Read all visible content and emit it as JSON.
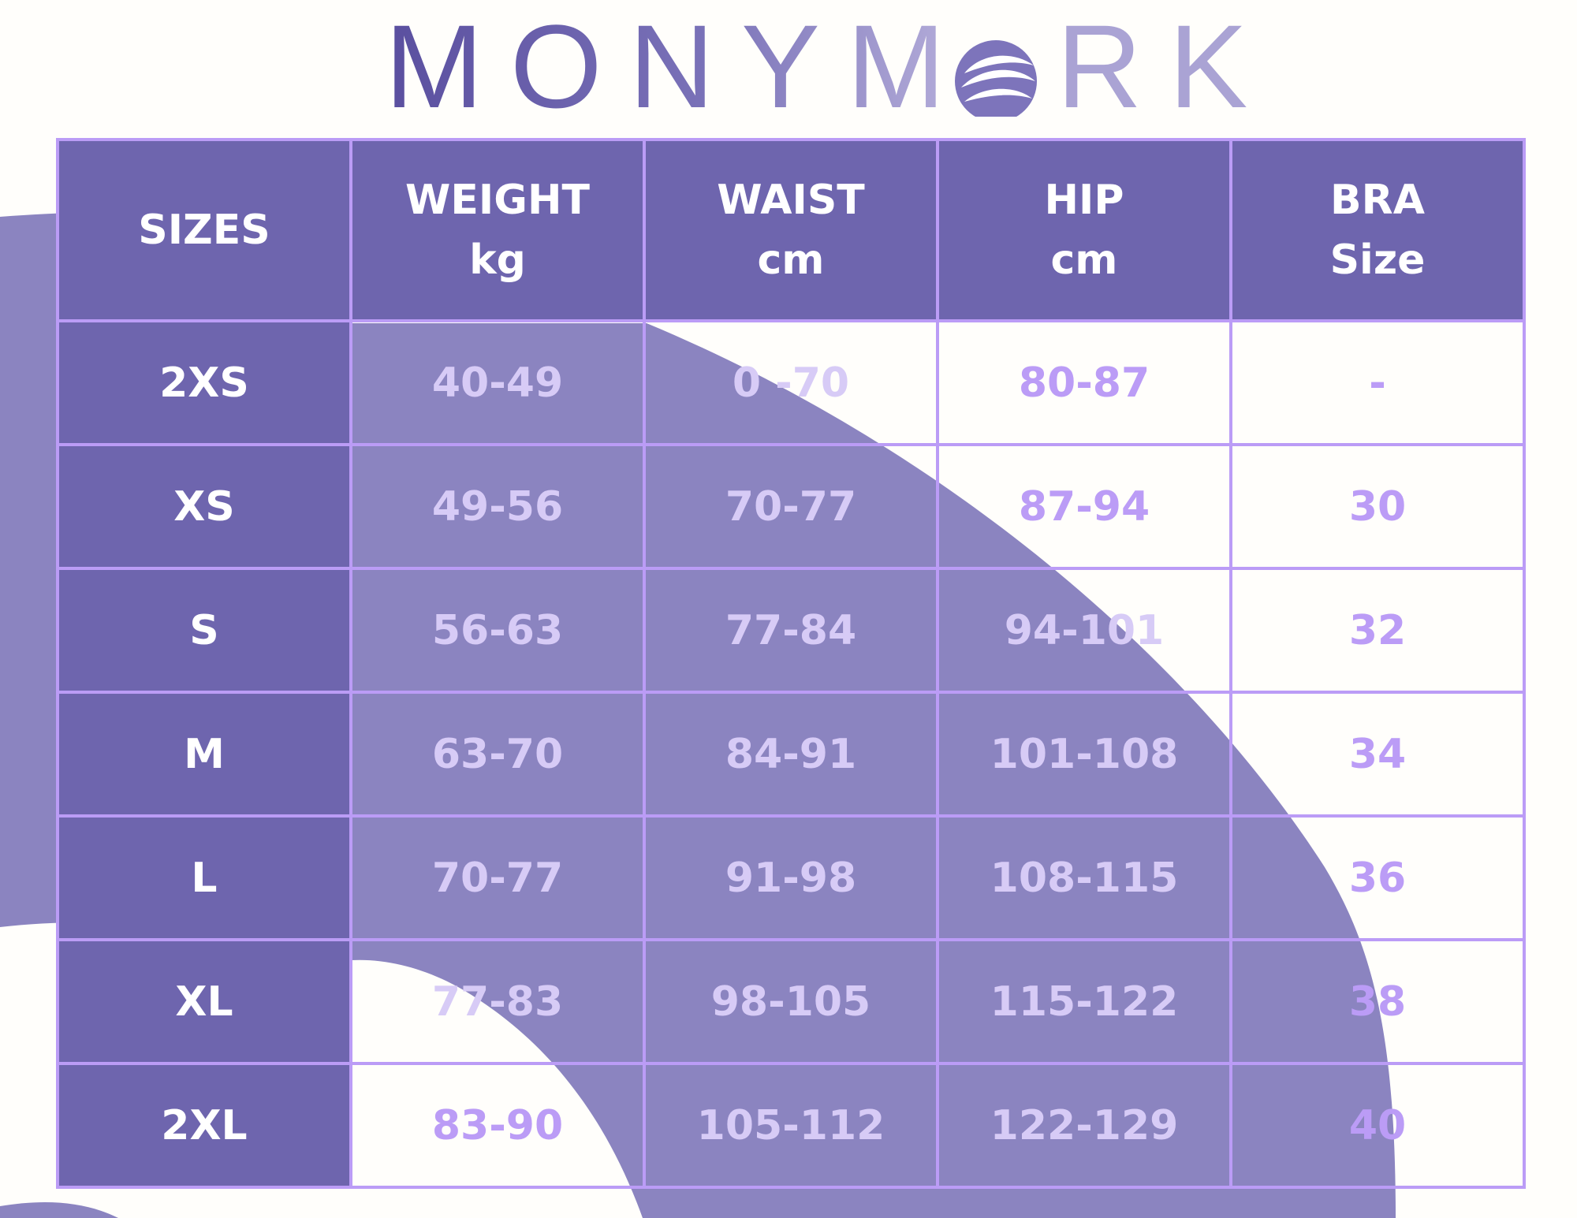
{
  "brand": {
    "name": "MONYMORK",
    "letters_before_mark": "MONYM",
    "mark_letter": "O",
    "letters_after_mark": "RK",
    "mark_icon": "swirl-o-logo-icon"
  },
  "colors": {
    "header_bg": "#6e65ae",
    "grid_border": "#bb9cf6",
    "background_shape": "#8b84c0",
    "value_text": "#bb9cf6",
    "value_text_on_shape": "#d7cbf6",
    "header_text": "#ffffff"
  },
  "table": {
    "headers": [
      {
        "line1": "SIZES",
        "line2": ""
      },
      {
        "line1": "WEIGHT",
        "line2": "kg"
      },
      {
        "line1": "WAIST",
        "line2": "cm"
      },
      {
        "line1": "HIP",
        "line2": "cm"
      },
      {
        "line1": "BRA",
        "line2": "Size"
      }
    ],
    "rows": [
      {
        "size": "2XS",
        "weight": "40-49",
        "waist": "0 -70",
        "hip": "80-87",
        "bra": "-"
      },
      {
        "size": "XS",
        "weight": "49-56",
        "waist": "70-77",
        "hip": "87-94",
        "bra": "30"
      },
      {
        "size": "S",
        "weight": "56-63",
        "waist": "77-84",
        "hip": "94-101",
        "bra": "32"
      },
      {
        "size": "M",
        "weight": "63-70",
        "waist": "84-91",
        "hip": "101-108",
        "bra": "34"
      },
      {
        "size": "L",
        "weight": "70-77",
        "waist": "91-98",
        "hip": "108-115",
        "bra": "36"
      },
      {
        "size": "XL",
        "weight": "77-83",
        "waist": "98-105",
        "hip": "115-122",
        "bra": "38"
      },
      {
        "size": "2XL",
        "weight": "83-90",
        "waist": "105-112",
        "hip": "122-129",
        "bra": "40"
      }
    ]
  }
}
